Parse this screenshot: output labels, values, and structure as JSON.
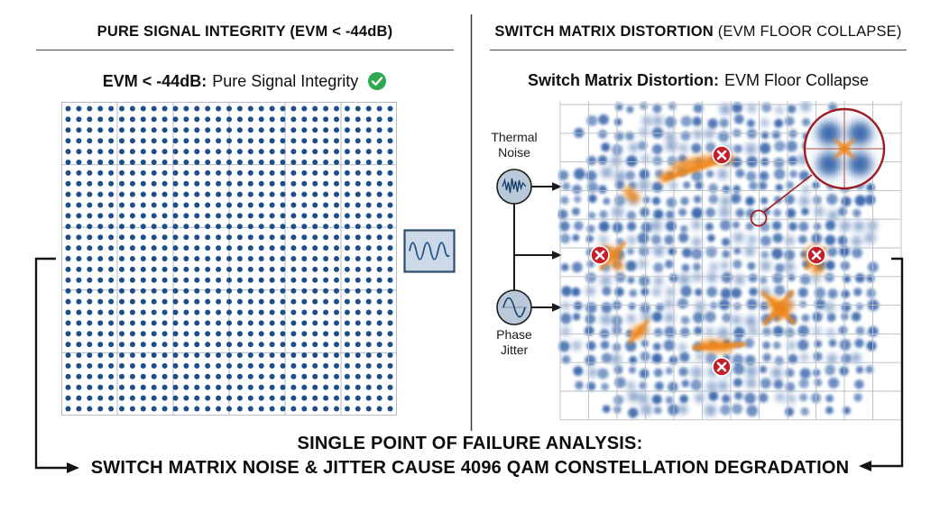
{
  "left_panel": {
    "header": "PURE SIGNAL INTEGRITY (EVM < -44dB)",
    "subtitle_bold": "EVM < -44dB:",
    "subtitle_regular": "Pure Signal Integrity",
    "check_icon": "green-check-circle",
    "constellation": {
      "type": "clean-qam-grid",
      "columns": 31,
      "rows": 29
    }
  },
  "right_panel": {
    "header_bold": "SWITCH MATRIX DISTORTION",
    "header_regular": "(EVM FLOOR COLLAPSE)",
    "subtitle_bold": "Switch Matrix Distortion:",
    "subtitle_regular": "EVM Floor Collapse",
    "thermal_noise_label": {
      "line1": "Thermal",
      "line2": "Noise"
    },
    "phase_jitter_label": {
      "line1": "Phase",
      "line2": "Jitter"
    },
    "constellation": {
      "type": "distorted-qam-cloud",
      "failure_markers": 4,
      "magnifier": true
    }
  },
  "footer": {
    "line1": "SINGLE POINT OF FAILURE ANALYSIS:",
    "line2": "SWITCH MATRIX NOISE & JITTER CAUSE 4096 QAM CONSTELLATION DEGRADATION"
  },
  "colors": {
    "dot_blue": "#1d4e89",
    "fuzzy_blue": "#2b5ca5",
    "orange": "#ef8418",
    "red_marker": "#c4202c",
    "dark_red": "#9c1d22",
    "green_check": "#2fa84f",
    "grid_gray": "#b3bac2",
    "icon_fill": "#b9c9da",
    "box_fill": "#ccd9e6",
    "box_border": "#2e4d6b"
  }
}
